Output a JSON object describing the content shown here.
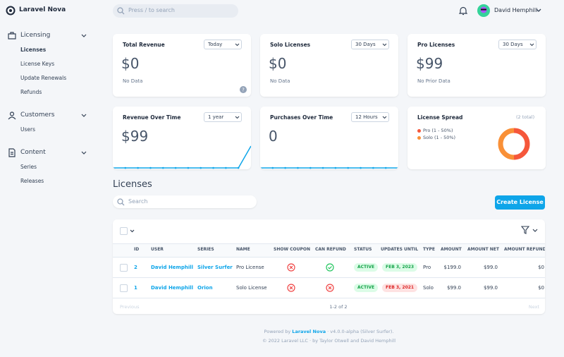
{
  "header": {
    "brand": "Laravel Nova",
    "search_placeholder": "Press / to search",
    "user": "David Hemphill"
  },
  "sidebar": [
    {
      "title": "Licensing",
      "items": [
        "Licenses",
        "License Keys",
        "Update Renewals",
        "Refunds"
      ]
    },
    {
      "title": "Customers",
      "items": [
        "Users"
      ]
    },
    {
      "title": "Content",
      "items": [
        "Series",
        "Releases"
      ]
    }
  ],
  "cards": [
    {
      "title": "Total Revenue",
      "range": "Today",
      "value": "$0",
      "note": "No Data"
    },
    {
      "title": "Solo Licenses",
      "range": "30 Days",
      "value": "$0",
      "note": "No Data"
    },
    {
      "title": "Pro Licenses",
      "range": "30 Days",
      "value": "$99",
      "note": "No Prior Data"
    },
    {
      "title": "Revenue Over Time",
      "range": "1 year",
      "value": "$99",
      "trend": [
        0,
        0,
        0,
        0,
        0,
        0,
        0,
        0,
        0,
        0,
        0,
        99
      ]
    },
    {
      "title": "Purchases Over Time",
      "range": "12 Hours",
      "value": "0",
      "trend": [
        0,
        0,
        0,
        0,
        0,
        0,
        0,
        0,
        0,
        0,
        0,
        0
      ]
    },
    {
      "title": "License Spread",
      "total": "(2 total)",
      "legend": [
        {
          "label": "Pro (1 - 50%)",
          "value": 1,
          "color": "#f5573b"
        },
        {
          "label": "Solo (1 - 50%)",
          "value": 1,
          "color": "#f99037"
        }
      ]
    }
  ],
  "resource": {
    "title": "Licenses",
    "search_placeholder": "Search",
    "create_button": "Create License",
    "columns": [
      "ID",
      "USER",
      "SERIES",
      "NAME",
      "SHOW COUPON",
      "CAN REFUND",
      "STATUS",
      "UPDATES UNTIL",
      "TYPE",
      "AMOUNT",
      "AMOUNT NET",
      "AMOUNT REFUNDED"
    ],
    "rows": [
      [
        "2",
        "David Hemphill",
        "Silver Surfer",
        "Pro License",
        false,
        true,
        "ACTIVE",
        "FEB 3, 2023",
        "Pro",
        "$199.0",
        "$99.0",
        "$0"
      ],
      [
        "1",
        "David Hemphill",
        "Orion",
        "Solo License",
        false,
        false,
        "ACTIVE",
        "FEB 3, 2021",
        "Solo",
        "$99.0",
        "$99.0",
        "$0"
      ]
    ],
    "date_colors": [
      "#16a34a",
      "#dc2626"
    ],
    "pagination": {
      "previous": "Previous",
      "status": "1-2 of 2",
      "next": "Next"
    }
  },
  "footer": {
    "powered_by": "Powered by",
    "link": "Laravel Nova",
    "version": "· v4.0.0-alpha (Silver Surfer).",
    "copyright": "© 2022 Laravel LLC · by Taylor Otwell and David Hemphill"
  }
}
